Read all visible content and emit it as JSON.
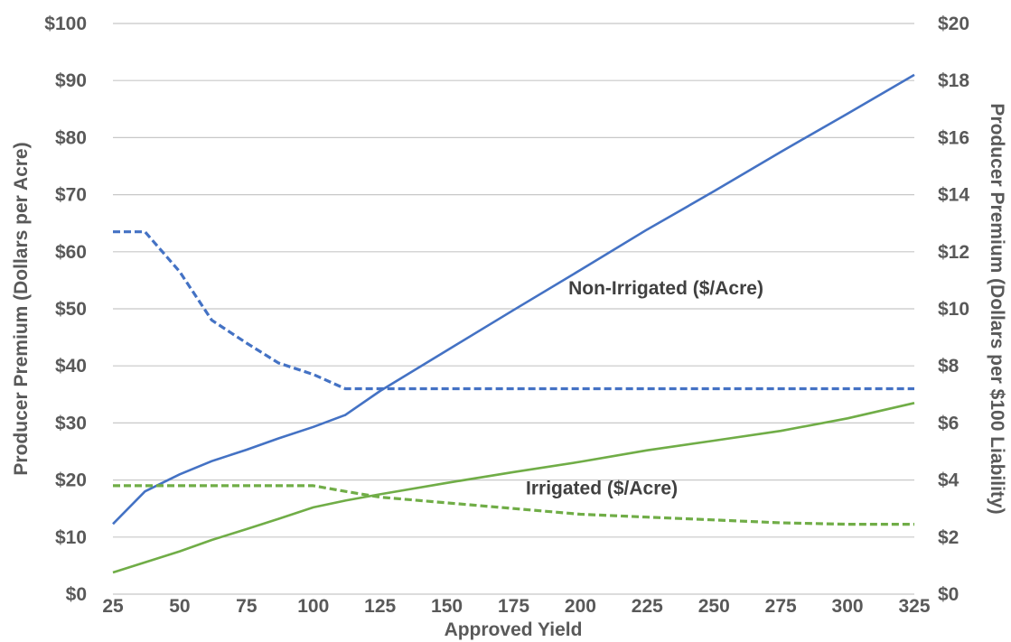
{
  "chart_data": {
    "type": "line",
    "title": "",
    "xlabel": "Approved Yield",
    "ylabel_left": "Producer Premium (Dollars per Acre)",
    "ylabel_right": "Producer Premium (Dollars per $100 Liability)",
    "x_ticks": [
      "25",
      "50",
      "75",
      "100",
      "125",
      "150",
      "175",
      "200",
      "225",
      "250",
      "275",
      "300",
      "325"
    ],
    "y_left_ticks": [
      "$0",
      "$10",
      "$20",
      "$30",
      "$40",
      "$50",
      "$60",
      "$70",
      "$80",
      "$90",
      "$100"
    ],
    "y_right_ticks": [
      "$0",
      "$2",
      "$4",
      "$6",
      "$8",
      "$10",
      "$12",
      "$14",
      "$16",
      "$18",
      "$20"
    ],
    "xlim": [
      25,
      325
    ],
    "ylim_left": [
      0,
      100
    ],
    "ylim_right": [
      0,
      20
    ],
    "grid": true,
    "colors": {
      "non_irrigated": "#4472c4",
      "irrigated": "#70ad47",
      "grid": "#c8c8c8"
    },
    "series": [
      {
        "axis": "left",
        "style": "solid",
        "color": "#4472c4",
        "points": [
          [
            25,
            12.3
          ],
          [
            37,
            18
          ],
          [
            50,
            21
          ],
          [
            62,
            23.3
          ],
          [
            75,
            25.3
          ],
          [
            87,
            27.3
          ],
          [
            100,
            29.3
          ],
          [
            112,
            31.4
          ],
          [
            125,
            35.6
          ],
          [
            150,
            42.7
          ],
          [
            175,
            49.8
          ],
          [
            200,
            56.8
          ],
          [
            225,
            63.9
          ],
          [
            250,
            70.6
          ],
          [
            275,
            77.5
          ],
          [
            300,
            84.2
          ],
          [
            325,
            91
          ]
        ]
      },
      {
        "axis": "right",
        "style": "dashed",
        "color": "#4472c4",
        "points": [
          [
            25,
            12.7
          ],
          [
            37,
            12.7
          ],
          [
            50,
            11.3
          ],
          [
            62,
            9.6
          ],
          [
            75,
            8.8
          ],
          [
            87,
            8.1
          ],
          [
            100,
            7.7
          ],
          [
            112,
            7.2
          ],
          [
            125,
            7.2
          ],
          [
            150,
            7.2
          ],
          [
            175,
            7.2
          ],
          [
            200,
            7.2
          ],
          [
            225,
            7.2
          ],
          [
            250,
            7.2
          ],
          [
            275,
            7.2
          ],
          [
            300,
            7.2
          ],
          [
            325,
            7.2
          ]
        ]
      },
      {
        "axis": "left",
        "style": "solid",
        "color": "#70ad47",
        "points": [
          [
            25,
            3.8
          ],
          [
            50,
            7.5
          ],
          [
            62,
            9.5
          ],
          [
            75,
            11.4
          ],
          [
            87,
            13.2
          ],
          [
            100,
            15.2
          ],
          [
            112,
            16.4
          ],
          [
            125,
            17.5
          ],
          [
            150,
            19.5
          ],
          [
            175,
            21.4
          ],
          [
            200,
            23.2
          ],
          [
            225,
            25.2
          ],
          [
            250,
            26.9
          ],
          [
            275,
            28.6
          ],
          [
            300,
            30.8
          ],
          [
            325,
            33.5
          ]
        ]
      },
      {
        "axis": "right",
        "style": "dashed",
        "color": "#70ad47",
        "points": [
          [
            25,
            3.8
          ],
          [
            50,
            3.8
          ],
          [
            75,
            3.8
          ],
          [
            100,
            3.8
          ],
          [
            112,
            3.6
          ],
          [
            125,
            3.4
          ],
          [
            150,
            3.2
          ],
          [
            175,
            3.0
          ],
          [
            200,
            2.8
          ],
          [
            225,
            2.7
          ],
          [
            250,
            2.6
          ],
          [
            275,
            2.5
          ],
          [
            300,
            2.45
          ],
          [
            325,
            2.45
          ]
        ]
      }
    ],
    "annotations": [
      {
        "text": "Non-Irrigated ($/Acre)",
        "x": 232,
        "y_left": 52.5
      },
      {
        "text": "Irrigated ($/Acre)",
        "x": 208,
        "y_left": 17.5
      }
    ]
  }
}
